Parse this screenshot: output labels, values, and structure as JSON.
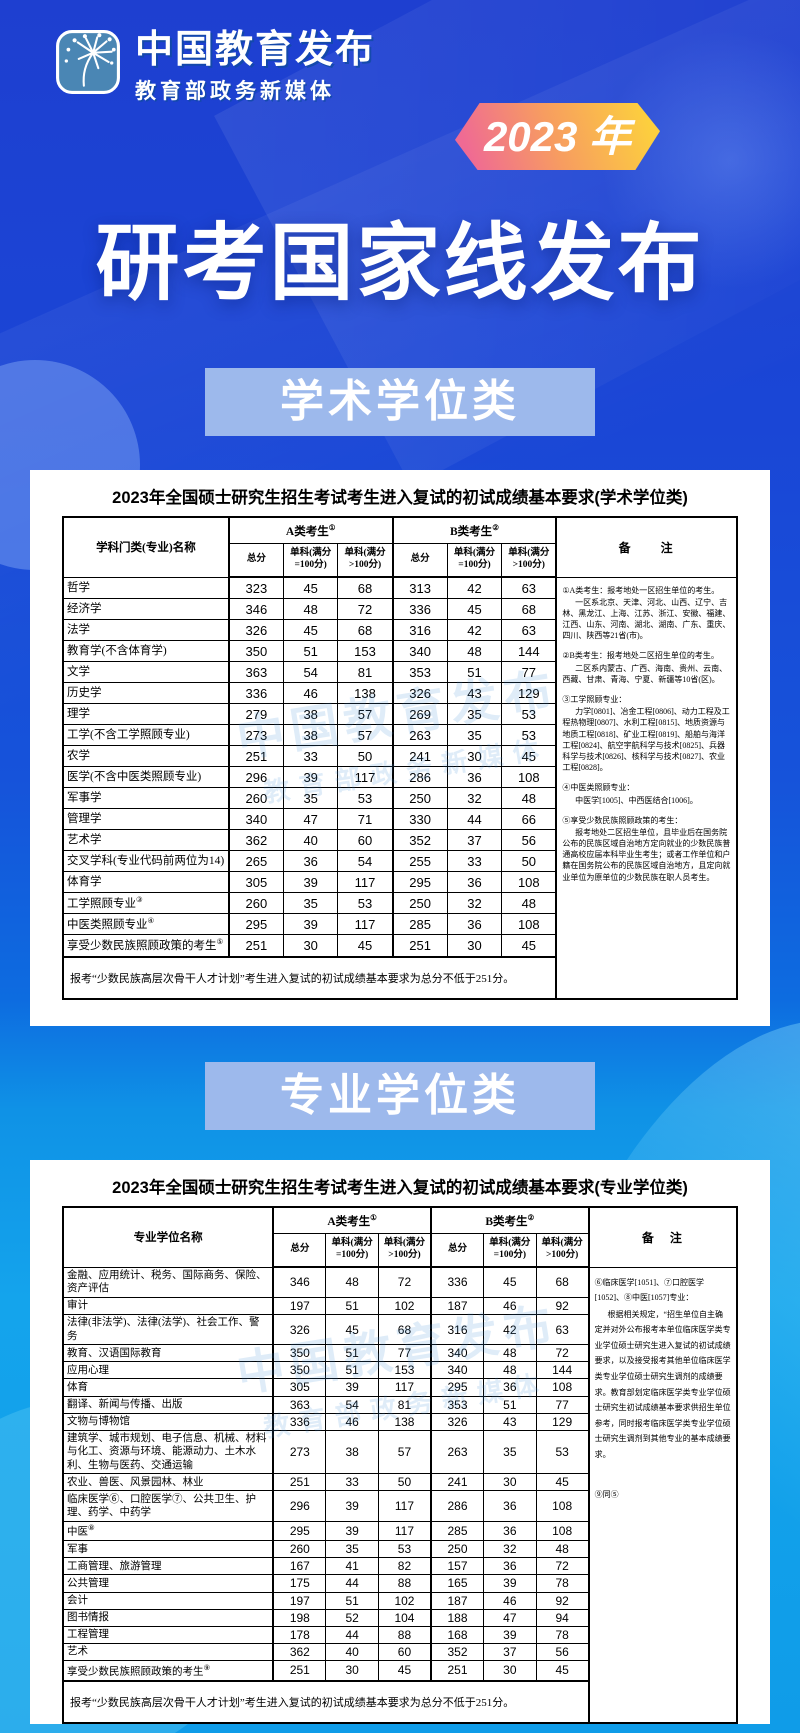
{
  "header": {
    "logo": {
      "icon": "dandelion-icon",
      "title": "中国教育发布",
      "subtitle": "教育部政务新媒体"
    },
    "year_badge": "2023 年",
    "main_title": "研考国家线发布"
  },
  "watermark": {
    "line1": "中国教育发布",
    "line2": "教育部政务新媒体"
  },
  "colors": {
    "deep_blue": "#1a46d6",
    "bright_blue": "#14a4ec",
    "banner_blue": "#9db9ec",
    "badge_pink": "#ef6a94",
    "badge_yellow": "#fccf3e",
    "card_white": "#ffffff",
    "table_ink": "#000000"
  },
  "section1": {
    "banner": "学术学位类",
    "table_title": "2023年全国硕士研究生招生考试考生进入复试的初试成绩基本要求(学术学位类)",
    "columns": {
      "name": "学科门类(专业)名称",
      "group_a": "A类考生",
      "group_a_sup": "①",
      "group_b": "B类考生",
      "group_b_sup": "②",
      "total": "总分",
      "single_eq100": "单科(满分=100分)",
      "single_gt100": "单科(满分>100分)",
      "remark": "备　　注"
    },
    "rows": [
      {
        "name": "哲学",
        "sup": "",
        "a": [
          323,
          45,
          68
        ],
        "b": [
          313,
          42,
          63
        ]
      },
      {
        "name": "经济学",
        "sup": "",
        "a": [
          346,
          48,
          72
        ],
        "b": [
          336,
          45,
          68
        ]
      },
      {
        "name": "法学",
        "sup": "",
        "a": [
          326,
          45,
          68
        ],
        "b": [
          316,
          42,
          63
        ]
      },
      {
        "name": "教育学(不含体育学)",
        "sup": "",
        "a": [
          350,
          51,
          153
        ],
        "b": [
          340,
          48,
          144
        ]
      },
      {
        "name": "文学",
        "sup": "",
        "a": [
          363,
          54,
          81
        ],
        "b": [
          353,
          51,
          77
        ]
      },
      {
        "name": "历史学",
        "sup": "",
        "a": [
          336,
          46,
          138
        ],
        "b": [
          326,
          43,
          129
        ]
      },
      {
        "name": "理学",
        "sup": "",
        "a": [
          279,
          38,
          57
        ],
        "b": [
          269,
          35,
          53
        ]
      },
      {
        "name": "工学(不含工学照顾专业)",
        "sup": "",
        "a": [
          273,
          38,
          57
        ],
        "b": [
          263,
          35,
          53
        ]
      },
      {
        "name": "农学",
        "sup": "",
        "a": [
          251,
          33,
          50
        ],
        "b": [
          241,
          30,
          45
        ]
      },
      {
        "name": "医学(不含中医类照顾专业)",
        "sup": "",
        "a": [
          296,
          39,
          117
        ],
        "b": [
          286,
          36,
          108
        ]
      },
      {
        "name": "军事学",
        "sup": "",
        "a": [
          260,
          35,
          53
        ],
        "b": [
          250,
          32,
          48
        ]
      },
      {
        "name": "管理学",
        "sup": "",
        "a": [
          340,
          47,
          71
        ],
        "b": [
          330,
          44,
          66
        ]
      },
      {
        "name": "艺术学",
        "sup": "",
        "a": [
          362,
          40,
          60
        ],
        "b": [
          352,
          37,
          56
        ]
      },
      {
        "name": "交叉学科(专业代码前两位为14)",
        "sup": "",
        "a": [
          265,
          36,
          54
        ],
        "b": [
          255,
          33,
          50
        ]
      },
      {
        "name": "体育学",
        "sup": "",
        "a": [
          305,
          39,
          117
        ],
        "b": [
          295,
          36,
          108
        ]
      },
      {
        "name": "工学照顾专业",
        "sup": "③",
        "a": [
          260,
          35,
          53
        ],
        "b": [
          250,
          32,
          48
        ]
      },
      {
        "name": "中医类照顾专业",
        "sup": "④",
        "a": [
          295,
          39,
          117
        ],
        "b": [
          285,
          36,
          108
        ]
      },
      {
        "name": "享受少数民族照顾政策的考生",
        "sup": "⑤",
        "a": [
          251,
          30,
          45
        ],
        "b": [
          251,
          30,
          45
        ]
      }
    ],
    "remarks": [
      {
        "text": "①A类考生：报考地处一区招生单位的考生。",
        "indent": false,
        "gap": false
      },
      {
        "text": "一区系北京、天津、河北、山西、辽宁、吉林、黑龙江、上海、江苏、浙江、安徽、福建、江西、山东、河南、湖北、湖南、广东、重庆、四川、陕西等21省(市)。",
        "indent": true,
        "gap": false
      },
      {
        "text": "②B类考生：报考地处二区招生单位的考生。",
        "indent": false,
        "gap": true
      },
      {
        "text": "二区系内蒙古、广西、海南、贵州、云南、西藏、甘肃、青海、宁夏、新疆等10省(区)。",
        "indent": true,
        "gap": false
      },
      {
        "text": "③工学照顾专业：",
        "indent": false,
        "gap": true
      },
      {
        "text": "力学[0801]、冶金工程[0806]、动力工程及工程热物理[0807]、水利工程[0815]、地质资源与地质工程[0818]、矿业工程[0819]、船舶与海洋工程[0824]、航空宇航科学与技术[0825]、兵器科学与技术[0826]、核科学与技术[0827]、农业工程[0828]。",
        "indent": true,
        "gap": false
      },
      {
        "text": "④中医类照顾专业：",
        "indent": false,
        "gap": true
      },
      {
        "text": "中医学[1005]、中西医结合[1006]。",
        "indent": true,
        "gap": false
      },
      {
        "text": "⑤享受少数民族照顾政策的考生：",
        "indent": false,
        "gap": true
      },
      {
        "text": "报考地处二区招生单位，且毕业后在国务院公布的民族区域自治地方定向就业的少数民族普通高校应届本科毕业生考生；或者工作单位和户籍在国务院公布的民族区域自治地方，且定向就业单位为原单位的少数民族在职人员考生。",
        "indent": true,
        "gap": false
      }
    ],
    "footnote": "报考“少数民族高层次骨干人才计划”考生进入复试的初试成绩基本要求为总分不低于251分。"
  },
  "section2": {
    "banner": "专业学位类",
    "table_title": "2023年全国硕士研究生招生考试考生进入复试的初试成绩基本要求(专业学位类)",
    "columns": {
      "name": "专业学位名称",
      "group_a": "A类考生",
      "group_a_sup": "①",
      "group_b": "B类考生",
      "group_b_sup": "②",
      "total": "总分",
      "single_eq100": "单科(满分=100分)",
      "single_gt100": "单科(满分>100分)",
      "remark": "备　注"
    },
    "rows": [
      {
        "name": "金融、应用统计、税务、国际商务、保险、资产评估",
        "sup": "",
        "a": [
          346,
          48,
          72
        ],
        "b": [
          336,
          45,
          68
        ]
      },
      {
        "name": "审计",
        "sup": "",
        "a": [
          197,
          51,
          102
        ],
        "b": [
          187,
          46,
          92
        ]
      },
      {
        "name": "法律(非法学)、法律(法学)、社会工作、警务",
        "sup": "",
        "a": [
          326,
          45,
          68
        ],
        "b": [
          316,
          42,
          63
        ]
      },
      {
        "name": "教育、汉语国际教育",
        "sup": "",
        "a": [
          350,
          51,
          77
        ],
        "b": [
          340,
          48,
          72
        ]
      },
      {
        "name": "应用心理",
        "sup": "",
        "a": [
          350,
          51,
          153
        ],
        "b": [
          340,
          48,
          144
        ]
      },
      {
        "name": "体育",
        "sup": "",
        "a": [
          305,
          39,
          117
        ],
        "b": [
          295,
          36,
          108
        ]
      },
      {
        "name": "翻译、新闻与传播、出版",
        "sup": "",
        "a": [
          363,
          54,
          81
        ],
        "b": [
          353,
          51,
          77
        ]
      },
      {
        "name": "文物与博物馆",
        "sup": "",
        "a": [
          336,
          46,
          138
        ],
        "b": [
          326,
          43,
          129
        ]
      },
      {
        "name": "建筑学、城市规划、电子信息、机械、材料与化工、资源与环境、能源动力、土木水利、生物与医药、交通运输",
        "sup": "",
        "a": [
          273,
          38,
          57
        ],
        "b": [
          263,
          35,
          53
        ]
      },
      {
        "name": "农业、兽医、风景园林、林业",
        "sup": "",
        "a": [
          251,
          33,
          50
        ],
        "b": [
          241,
          30,
          45
        ]
      },
      {
        "name": "临床医学⑥、口腔医学⑦、公共卫生、护理、药学、中药学",
        "sup": "",
        "a": [
          296,
          39,
          117
        ],
        "b": [
          286,
          36,
          108
        ]
      },
      {
        "name": "中医",
        "sup": "⑧",
        "a": [
          295,
          39,
          117
        ],
        "b": [
          285,
          36,
          108
        ]
      },
      {
        "name": "军事",
        "sup": "",
        "a": [
          260,
          35,
          53
        ],
        "b": [
          250,
          32,
          48
        ]
      },
      {
        "name": "工商管理、旅游管理",
        "sup": "",
        "a": [
          167,
          41,
          82
        ],
        "b": [
          157,
          36,
          72
        ]
      },
      {
        "name": "公共管理",
        "sup": "",
        "a": [
          175,
          44,
          88
        ],
        "b": [
          165,
          39,
          78
        ]
      },
      {
        "name": "会计",
        "sup": "",
        "a": [
          197,
          51,
          102
        ],
        "b": [
          187,
          46,
          92
        ]
      },
      {
        "name": "图书情报",
        "sup": "",
        "a": [
          198,
          52,
          104
        ],
        "b": [
          188,
          47,
          94
        ]
      },
      {
        "name": "工程管理",
        "sup": "",
        "a": [
          178,
          44,
          88
        ],
        "b": [
          168,
          39,
          78
        ]
      },
      {
        "name": "艺术",
        "sup": "",
        "a": [
          362,
          40,
          60
        ],
        "b": [
          352,
          37,
          56
        ]
      },
      {
        "name": "享受少数民族照顾政策的考生",
        "sup": "⑨",
        "a": [
          251,
          30,
          45
        ],
        "b": [
          251,
          30,
          45
        ]
      }
    ],
    "remarks": [
      {
        "text": "⑥临床医学[1051]、⑦口腔医学[1052]、⑧中医[1057]专业：",
        "indent": false,
        "gap": false
      },
      {
        "text": "根据相关规定，“招生单位自主确定并对外公布报考本单位临床医学类专业学位硕士研究生进入复试的初试成绩要求，以及接受报考其他单位临床医学类专业学位硕士研究生调剂的成绩要求。教育部划定临床医学类专业学位硕士研究生初试成绩基本要求供招生单位参考，同时报考临床医学类专业学位硕士研究生调剂到其他专业的基本成绩要求。",
        "indent": true,
        "gap": false
      },
      {
        "text": "⑨同⑤",
        "indent": false,
        "gap": true
      }
    ],
    "footnote": "报考“少数民族高层次骨干人才计划”考生进入复试的初试成绩基本要求为总分不低于251分。"
  }
}
